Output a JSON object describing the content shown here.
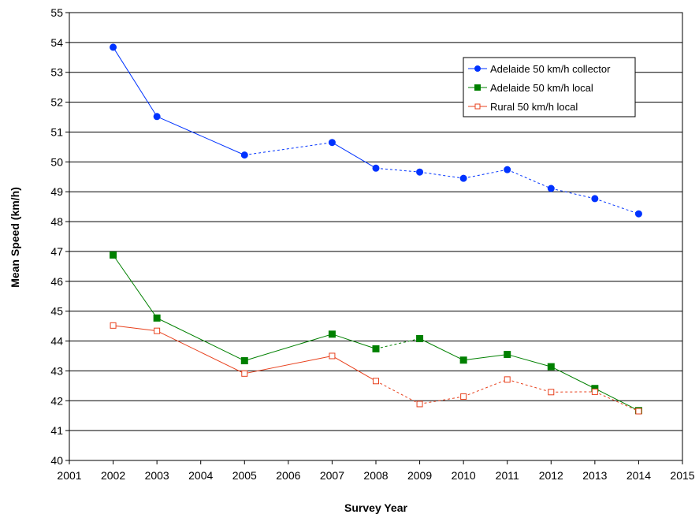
{
  "chart_data": {
    "type": "line",
    "xlabel": "Survey Year",
    "ylabel": "Mean Speed (km/h)",
    "xlim": [
      2001,
      2015
    ],
    "ylim": [
      40,
      55
    ],
    "x_ticks": [
      2001,
      2002,
      2003,
      2004,
      2005,
      2006,
      2007,
      2008,
      2009,
      2010,
      2011,
      2012,
      2013,
      2014,
      2015
    ],
    "y_ticks": [
      40,
      41,
      42,
      43,
      44,
      45,
      46,
      47,
      48,
      49,
      50,
      51,
      52,
      53,
      54,
      55
    ],
    "grid": "horizontal",
    "legend_position": "top-right",
    "series": [
      {
        "name": "Adelaide 50 km/h collector",
        "color": "#0033FF",
        "marker": "circle-filled",
        "x": [
          2002,
          2003,
          2005,
          2007,
          2008,
          2009,
          2010,
          2011,
          2012,
          2013,
          2014
        ],
        "values": [
          53.84,
          51.52,
          50.23,
          50.65,
          49.79,
          49.66,
          49.45,
          49.74,
          49.11,
          48.77,
          48.26
        ],
        "line_styles": [
          "solid",
          "solid",
          "dashed",
          "solid",
          "dashed",
          "dashed",
          "dashed",
          "dashed",
          "dashed",
          "dashed"
        ]
      },
      {
        "name": "Adelaide 50 km/h local",
        "color": "#008000",
        "marker": "square-filled",
        "x": [
          2002,
          2003,
          2005,
          2007,
          2008,
          2009,
          2010,
          2011,
          2012,
          2013,
          2014
        ],
        "values": [
          46.88,
          44.77,
          43.34,
          44.23,
          43.74,
          44.08,
          43.36,
          43.55,
          43.14,
          42.41,
          41.67
        ],
        "line_styles": [
          "solid",
          "solid",
          "solid",
          "solid",
          "dashed",
          "solid",
          "solid",
          "solid",
          "solid",
          "solid"
        ]
      },
      {
        "name": "Rural 50 km/h local",
        "color": "#E8401C",
        "marker": "square-open",
        "x": [
          2002,
          2003,
          2005,
          2007,
          2008,
          2009,
          2010,
          2011,
          2012,
          2013,
          2014
        ],
        "values": [
          44.52,
          44.34,
          42.91,
          43.5,
          42.66,
          41.89,
          42.14,
          42.71,
          42.29,
          42.3,
          41.65
        ],
        "line_styles": [
          "solid",
          "solid",
          "solid",
          "solid",
          "dashed",
          "dashed",
          "dashed",
          "dashed",
          "dashed",
          "dashed"
        ]
      }
    ]
  }
}
